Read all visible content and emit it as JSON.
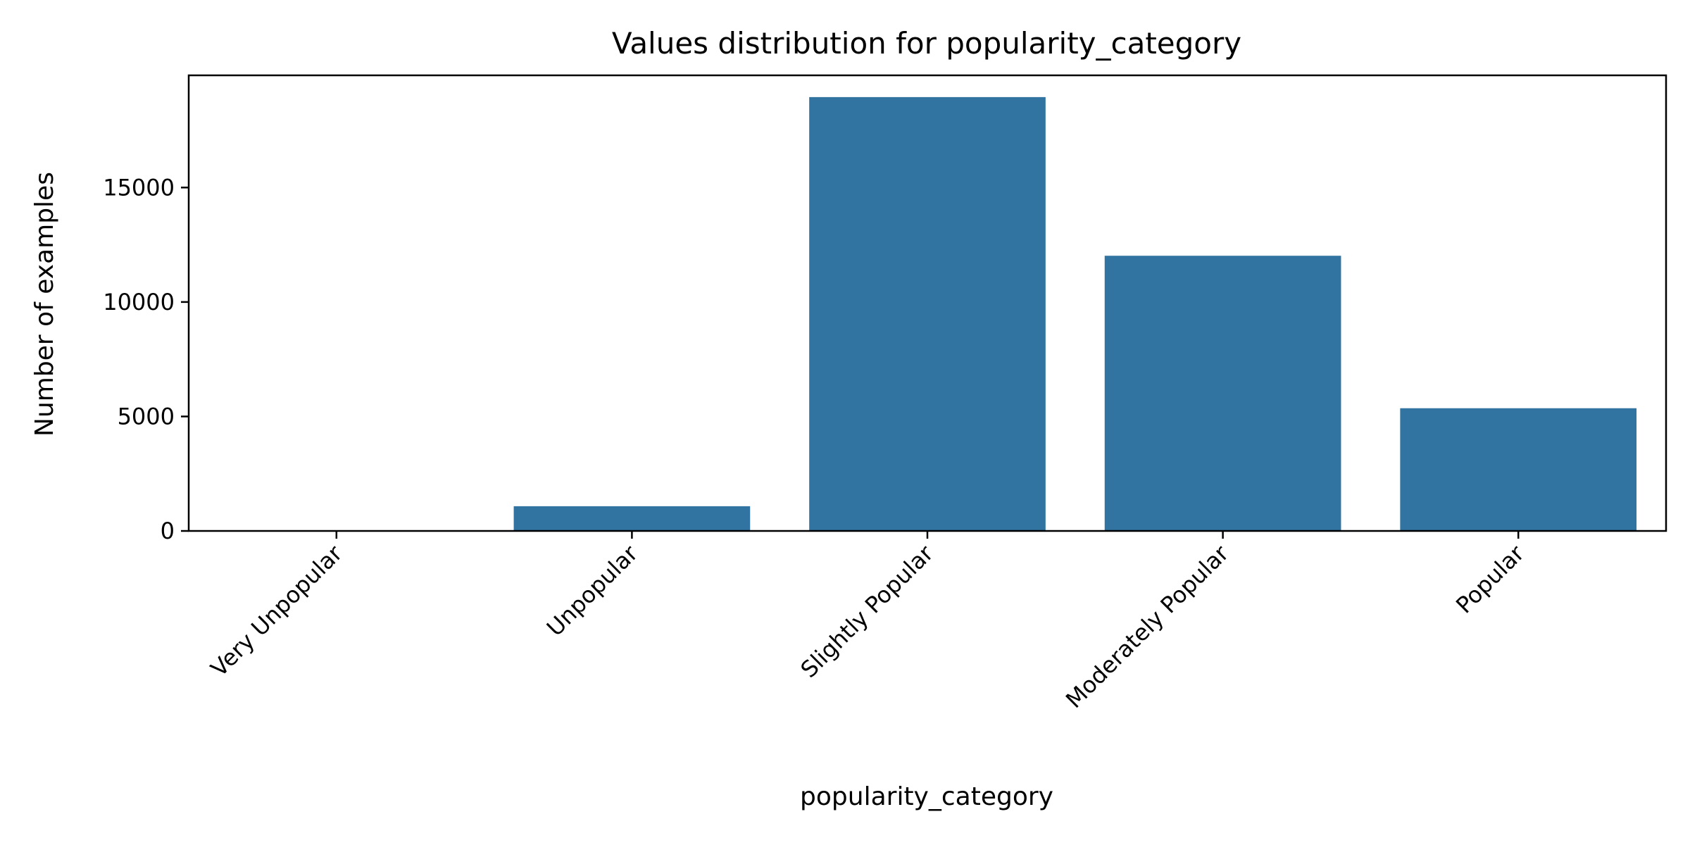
{
  "chart_data": {
    "type": "bar",
    "title": "Values distribution for popularity_category",
    "xlabel": "popularity_category",
    "ylabel": "Number of examples",
    "categories": [
      "Very Unpopular",
      "Unpopular",
      "Slightly Popular",
      "Moderately Popular",
      "Popular"
    ],
    "values": [
      0,
      1080,
      18950,
      12020,
      5360
    ],
    "ylim": [
      0,
      19900
    ],
    "yticks": [
      0,
      5000,
      10000,
      15000
    ],
    "ytick_labels": [
      "0",
      "5000",
      "10000",
      "15000"
    ],
    "grid": false,
    "legend": "none",
    "bar_color": "#3274a1",
    "x_tick_rotation_deg": 45
  }
}
